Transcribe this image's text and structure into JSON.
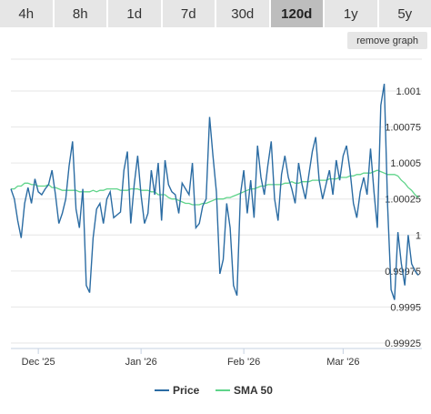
{
  "range_tabs": [
    "4h",
    "8h",
    "1d",
    "7d",
    "30d",
    "120d",
    "1y",
    "5y"
  ],
  "active_tab": "120d",
  "remove_graph_label": "remove graph",
  "colors": {
    "price": "#2b6ca3",
    "sma": "#5fd48a",
    "grid": "#e6e6e6",
    "axis": "#c5d0e0"
  },
  "chart_data": {
    "type": "line",
    "x_tick_labels": [
      "Dec '25",
      "Jan '26",
      "Feb '26",
      "Mar '26"
    ],
    "x_tick_positions": [
      8,
      38,
      68,
      97
    ],
    "y_ticks": [
      0.99925,
      0.9995,
      0.99975,
      1,
      1.00025,
      1.0005,
      1.00075,
      1.001
    ],
    "y_tick_labels": [
      "0.99925",
      "0.9995",
      "0.99975",
      "1",
      "1.00025",
      "1.0005",
      "1.00075",
      "1.001"
    ],
    "ylim": [
      0.99925,
      1.001
    ],
    "xlim": [
      0,
      120
    ],
    "grid": true,
    "legend_position": "bottom",
    "series": [
      {
        "name": "Price",
        "values": [
          1.00032,
          1.00025,
          1.0001,
          0.99998,
          1.00022,
          1.00033,
          1.00022,
          1.00039,
          1.0003,
          1.00028,
          1.00032,
          1.00035,
          1.00045,
          1.00028,
          1.00008,
          1.00015,
          1.00025,
          1.00048,
          1.00065,
          1.00018,
          1.00005,
          1.00032,
          0.99965,
          0.9996,
          0.99998,
          1.00018,
          1.00022,
          1.00008,
          1.00025,
          1.0003,
          1.00012,
          1.00014,
          1.00016,
          1.00045,
          1.00058,
          1.00008,
          1.00035,
          1.00055,
          1.00028,
          1.00008,
          1.00015,
          1.00045,
          1.00028,
          1.0005,
          1.0001,
          1.00052,
          1.00035,
          1.0003,
          1.00028,
          1.00015,
          1.00036,
          1.00032,
          1.00028,
          1.0005,
          1.00005,
          1.00008,
          1.0002,
          1.00025,
          1.00082,
          1.00055,
          1.0003,
          0.99973,
          0.99983,
          1.00022,
          1.00005,
          0.99965,
          0.99958,
          1.00028,
          1.00045,
          1.00015,
          1.00038,
          1.00012,
          1.00062,
          1.0004,
          1.00028,
          1.00048,
          1.00065,
          1.00025,
          1.0001,
          1.00042,
          1.00055,
          1.0004,
          1.00032,
          1.00022,
          1.0005,
          1.00035,
          1.00025,
          1.00042,
          1.00058,
          1.00068,
          1.00038,
          1.00025,
          1.00035,
          1.00045,
          1.00028,
          1.00052,
          1.00038,
          1.00055,
          1.00062,
          1.00045,
          1.00022,
          1.00012,
          1.0003,
          1.0004,
          1.00028,
          1.0006,
          1.0003,
          1.00005,
          1.0009,
          1.00105,
          1.0002,
          0.99962,
          0.99955,
          1.00002,
          0.9998,
          0.99965,
          1.0,
          0.9998,
          0.99975,
          0.99972
        ]
      },
      {
        "name": "SMA 50",
        "values": [
          1.00032,
          1.00032,
          1.00034,
          1.00034,
          1.00036,
          1.00036,
          1.00035,
          1.00035,
          1.00034,
          1.00034,
          1.00034,
          1.00035,
          1.00033,
          1.00033,
          1.00032,
          1.00031,
          1.00031,
          1.00031,
          1.00031,
          1.00031,
          1.0003,
          1.0003,
          1.0003,
          1.0003,
          1.00031,
          1.0003,
          1.00031,
          1.00031,
          1.00032,
          1.00032,
          1.00032,
          1.00032,
          1.00031,
          1.00031,
          1.00031,
          1.00032,
          1.00032,
          1.00032,
          1.00031,
          1.00031,
          1.00031,
          1.0003,
          1.0003,
          1.00028,
          1.00028,
          1.00028,
          1.00026,
          1.00025,
          1.00025,
          1.00024,
          1.00023,
          1.00022,
          1.00022,
          1.00021,
          1.00021,
          1.00021,
          1.00022,
          1.00022,
          1.00023,
          1.00024,
          1.00025,
          1.00025,
          1.00025,
          1.00026,
          1.00026,
          1.00027,
          1.00028,
          1.00029,
          1.0003,
          1.00031,
          1.00032,
          1.00032,
          1.00033,
          1.00034,
          1.00034,
          1.00035,
          1.00035,
          1.00035,
          1.00035,
          1.00035,
          1.00036,
          1.00036,
          1.00037,
          1.00036,
          1.00036,
          1.00037,
          1.00037,
          1.00037,
          1.00038,
          1.00038,
          1.00038,
          1.00038,
          1.00038,
          1.00039,
          1.00039,
          1.00039,
          1.0004,
          1.0004,
          1.0004,
          1.00041,
          1.00041,
          1.00042,
          1.00042,
          1.00043,
          1.00043,
          1.00043,
          1.00044,
          1.00045,
          1.00044,
          1.00043,
          1.00042,
          1.00042,
          1.00042,
          1.00041,
          1.00038,
          1.00036,
          1.00033,
          1.00031,
          1.00028,
          1.00026
        ]
      }
    ]
  }
}
